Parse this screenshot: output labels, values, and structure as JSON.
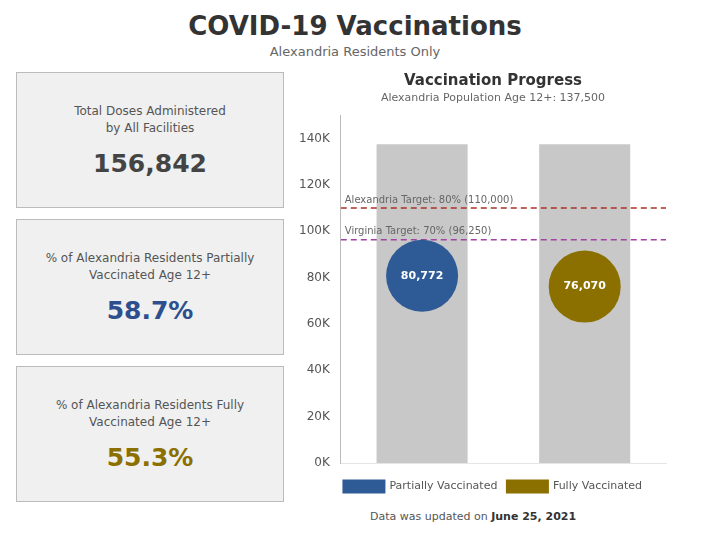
{
  "title": "COVID-19 Vaccinations",
  "subtitle": "Alexandria Residents Only",
  "panels": [
    {
      "lines": [
        "Total Doses Administered",
        "by All Facilities"
      ],
      "value": 156842,
      "label": "156,842",
      "color": "#444444"
    },
    {
      "lines": [
        "% of Alexandria Residents Partially",
        "Vaccinated Age 12+"
      ],
      "value": 58.7,
      "label": "58.7%",
      "color": "#2e4f8e"
    },
    {
      "lines": [
        "% of Alexandria Residents Fully",
        "Vaccinated Age 12+"
      ],
      "value": 55.3,
      "label": "55.3%",
      "color": "#8b7000"
    }
  ],
  "footer_text": "Data was updated on ",
  "footer_date": "June 25, 2021",
  "chart_data": {
    "type": "bar",
    "title": "Vaccination Progress",
    "subtitle": "Alexandria Population Age 12+: 137,500",
    "categories": [
      null,
      null
    ],
    "series": [
      {
        "type": "bar",
        "color": "#c8c8c8",
        "values": [
          137500,
          137500
        ]
      },
      {
        "name": "Partially Vaccinated",
        "type": "scatter",
        "marker": "circle",
        "color": "#2e5b96",
        "values": [
          80772,
          null
        ],
        "value_labels": [
          "80,772",
          null
        ]
      },
      {
        "name": "Fully Vaccinated",
        "type": "scatter",
        "marker": "circle",
        "color": "#8b7000",
        "values": [
          null,
          76070
        ],
        "value_labels": [
          null,
          "76,070"
        ]
      }
    ],
    "hlines": [
      {
        "value": 110000,
        "label": "Alexandria Target: 80% (110,000)",
        "color": "#a93226",
        "line_style": "dashed"
      },
      {
        "value": 96250,
        "label": "Virginia Target: 70% (96,250)",
        "color": "#a044a0",
        "line_style": "dashed"
      }
    ],
    "ylim": [
      0,
      150000
    ],
    "yticks": [
      {
        "value": 0,
        "label": "0K"
      },
      {
        "value": 20000,
        "label": "20K"
      },
      {
        "value": 40000,
        "label": "40K"
      },
      {
        "value": 60000,
        "label": "60K"
      },
      {
        "value": 80000,
        "label": "80K"
      },
      {
        "value": 100000,
        "label": "100K"
      },
      {
        "value": 120000,
        "label": "120K"
      },
      {
        "value": 140000,
        "label": "140K"
      }
    ],
    "grid": false,
    "tick_labels": "y",
    "legend": "bottom",
    "data_labels": true
  }
}
